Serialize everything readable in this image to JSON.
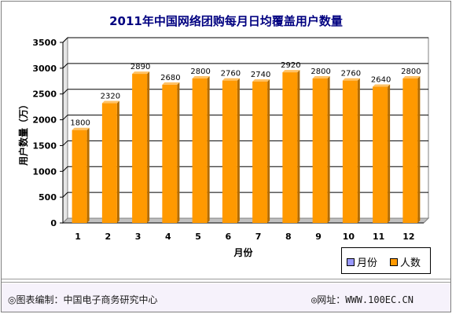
{
  "chart_data": {
    "type": "bar",
    "title": "2011年中国网络团购每月日均覆盖用户数量",
    "xlabel": "月份",
    "ylabel": "用户数量（万）",
    "ylim": [
      0,
      3500
    ],
    "yticks": [
      "0",
      "500",
      "1000",
      "1500",
      "2000",
      "2500",
      "3000",
      "3500"
    ],
    "categories": [
      "1",
      "2",
      "3",
      "4",
      "5",
      "6",
      "7",
      "8",
      "9",
      "10",
      "11",
      "12"
    ],
    "series": [
      {
        "name": "月份",
        "color": "#9999ff",
        "values": [
          1,
          2,
          3,
          4,
          5,
          6,
          7,
          8,
          9,
          10,
          11,
          12
        ]
      },
      {
        "name": "人数",
        "color": "#ff9900",
        "values": [
          1800,
          2320,
          2890,
          2680,
          2800,
          2760,
          2740,
          2920,
          2800,
          2760,
          2640,
          2800
        ]
      }
    ],
    "data_labels": [
      "1800",
      "2320",
      "2890",
      "2680",
      "2800",
      "2760",
      "2740",
      "2920",
      "2800",
      "2760",
      "2640",
      "2800"
    ],
    "grid": true,
    "legend_position": "bottom-right"
  },
  "footer": {
    "left": "◎图表编制：中国电子商务研究中心",
    "right": "◎网址：WWW.100EC.CN"
  },
  "colors": {
    "title": "#000080",
    "grid": "#000000",
    "bar": "#ff9900",
    "bar_alt": "#9999ff"
  }
}
